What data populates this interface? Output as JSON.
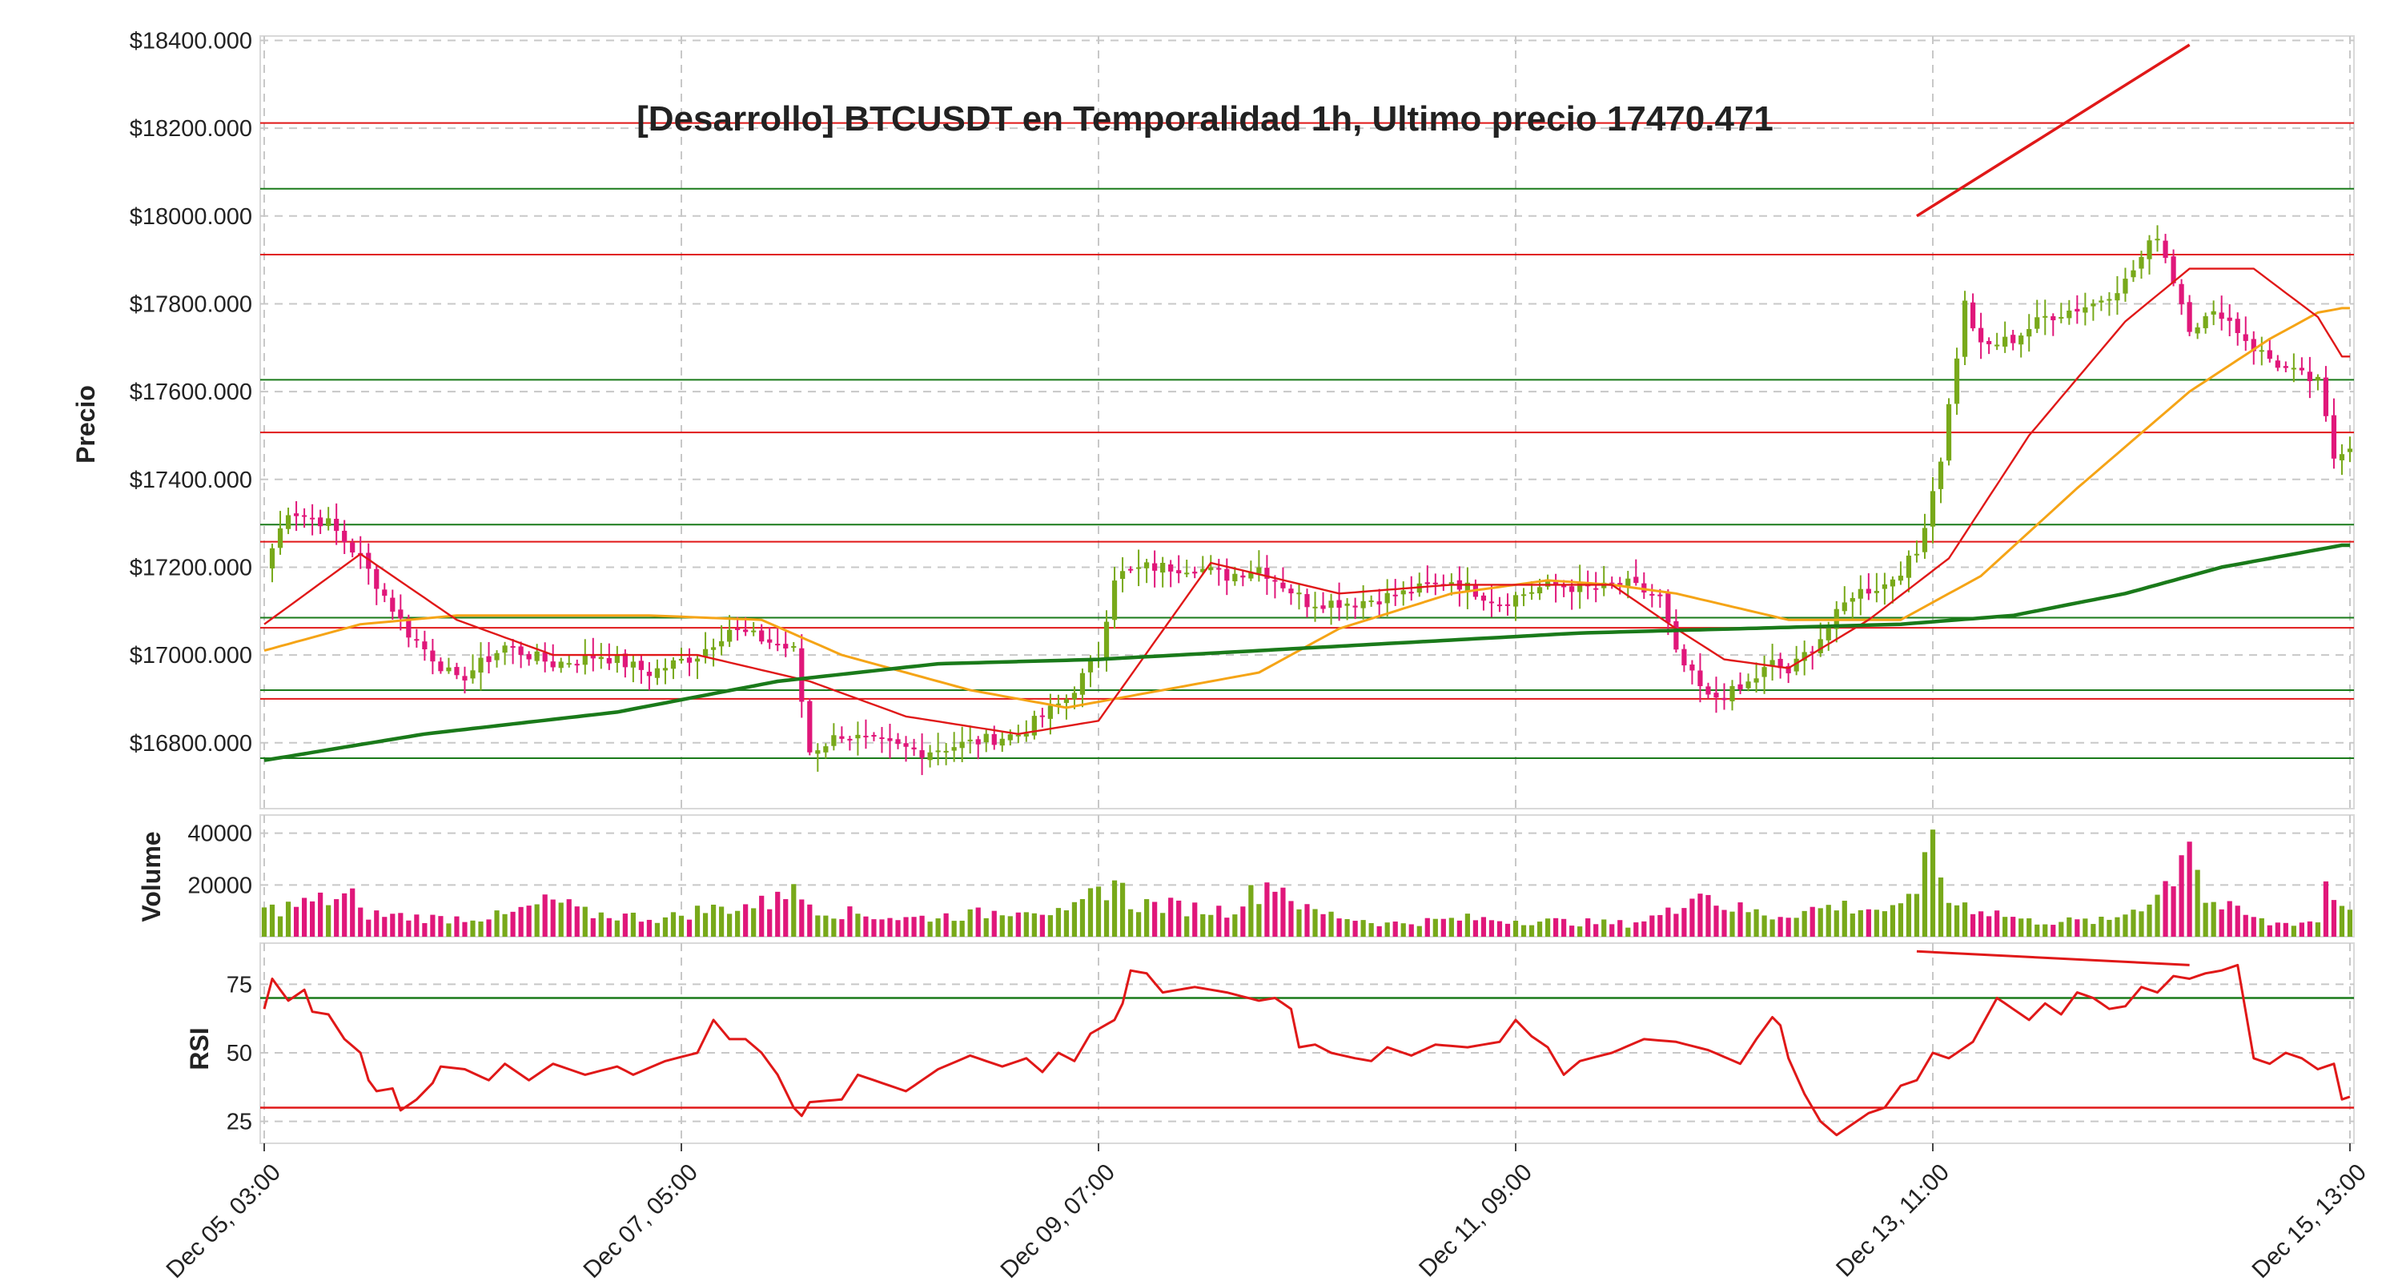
{
  "chart_data": {
    "type": "candlestick",
    "title": "[Desarrollo] BTCUSDT en Temporalidad 1h, Ultimo precio 17470.471",
    "colors": {
      "up": "#78a91a",
      "down": "#e0177a",
      "sma_fast": "#e01818",
      "sma_mid": "#f5a416",
      "sma_slow": "#1a7a1a",
      "support": "#1a7a1a",
      "resistance": "#e01818",
      "rsi": "#e01818",
      "grid": "#c8c8c8"
    },
    "x_ticks": [
      "Dec 05, 03:00",
      "Dec 07, 05:00",
      "Dec 09, 07:00",
      "Dec 11, 09:00",
      "Dec 13, 11:00",
      "Dec 15, 13:00"
    ],
    "price_panel": {
      "ylabel": "Precio",
      "ylim": [
        16650,
        18410
      ],
      "y_ticks": [
        {
          "value": 18400,
          "label": "$18400.000"
        },
        {
          "value": 18200,
          "label": "$18200.000"
        },
        {
          "value": 18000,
          "label": "$18000.000"
        },
        {
          "value": 17800,
          "label": "$17800.000"
        },
        {
          "value": 17600,
          "label": "$17600.000"
        },
        {
          "value": 17400,
          "label": "$17400.000"
        },
        {
          "value": 17200,
          "label": "$17200.000"
        },
        {
          "value": 17000,
          "label": "$17000.000"
        },
        {
          "value": 16800,
          "label": "$16800.000"
        }
      ],
      "resistance_levels": [
        18212,
        17912,
        17507,
        17258,
        17062,
        16900
      ],
      "support_levels": [
        18062,
        17627,
        17297,
        17085,
        16920,
        16765
      ],
      "divergence_line": {
        "from": [
          206,
          18000
        ],
        "to": [
          240,
          18390
        ]
      },
      "close_anchors": [
        [
          0,
          17200
        ],
        [
          3,
          17330
        ],
        [
          8,
          17300
        ],
        [
          12,
          17220
        ],
        [
          18,
          17050
        ],
        [
          24,
          16940
        ],
        [
          30,
          17020
        ],
        [
          36,
          16980
        ],
        [
          42,
          17000
        ],
        [
          48,
          16960
        ],
        [
          54,
          17000
        ],
        [
          58,
          17060
        ],
        [
          63,
          17030
        ],
        [
          66,
          17010
        ],
        [
          68,
          16780
        ],
        [
          72,
          16820
        ],
        [
          76,
          16800
        ],
        [
          82,
          16780
        ],
        [
          88,
          16800
        ],
        [
          94,
          16820
        ],
        [
          100,
          16900
        ],
        [
          104,
          17000
        ],
        [
          106,
          17180
        ],
        [
          110,
          17200
        ],
        [
          116,
          17200
        ],
        [
          120,
          17180
        ],
        [
          124,
          17200
        ],
        [
          130,
          17120
        ],
        [
          136,
          17120
        ],
        [
          142,
          17140
        ],
        [
          148,
          17170
        ],
        [
          154,
          17120
        ],
        [
          160,
          17160
        ],
        [
          166,
          17150
        ],
        [
          170,
          17160
        ],
        [
          174,
          17130
        ],
        [
          176,
          17000
        ],
        [
          180,
          16900
        ],
        [
          184,
          16920
        ],
        [
          188,
          16980
        ],
        [
          190,
          16960
        ],
        [
          194,
          17040
        ],
        [
          198,
          17140
        ],
        [
          202,
          17160
        ],
        [
          206,
          17230
        ],
        [
          209,
          17450
        ],
        [
          212,
          17800
        ],
        [
          214,
          17700
        ],
        [
          218,
          17720
        ],
        [
          222,
          17770
        ],
        [
          228,
          17800
        ],
        [
          232,
          17850
        ],
        [
          236,
          17960
        ],
        [
          240,
          17750
        ],
        [
          244,
          17780
        ],
        [
          248,
          17700
        ],
        [
          252,
          17650
        ],
        [
          256,
          17620
        ],
        [
          258,
          17450
        ],
        [
          259,
          17470
        ]
      ],
      "sma_fast": [
        [
          0,
          17070
        ],
        [
          12,
          17230
        ],
        [
          24,
          17080
        ],
        [
          36,
          17000
        ],
        [
          54,
          17000
        ],
        [
          68,
          16940
        ],
        [
          80,
          16860
        ],
        [
          94,
          16820
        ],
        [
          104,
          16850
        ],
        [
          118,
          17210
        ],
        [
          134,
          17140
        ],
        [
          148,
          17160
        ],
        [
          160,
          17160
        ],
        [
          168,
          17160
        ],
        [
          176,
          17060
        ],
        [
          182,
          16990
        ],
        [
          190,
          16970
        ],
        [
          200,
          17080
        ],
        [
          210,
          17220
        ],
        [
          220,
          17500
        ],
        [
          232,
          17760
        ],
        [
          240,
          17880
        ],
        [
          248,
          17880
        ],
        [
          256,
          17770
        ],
        [
          259,
          17680
        ]
      ],
      "sma_mid": [
        [
          0,
          17010
        ],
        [
          12,
          17070
        ],
        [
          24,
          17090
        ],
        [
          36,
          17090
        ],
        [
          48,
          17090
        ],
        [
          62,
          17080
        ],
        [
          72,
          17000
        ],
        [
          88,
          16920
        ],
        [
          100,
          16880
        ],
        [
          112,
          16920
        ],
        [
          124,
          16960
        ],
        [
          134,
          17060
        ],
        [
          148,
          17140
        ],
        [
          160,
          17170
        ],
        [
          168,
          17160
        ],
        [
          176,
          17140
        ],
        [
          190,
          17080
        ],
        [
          204,
          17080
        ],
        [
          214,
          17180
        ],
        [
          226,
          17380
        ],
        [
          240,
          17600
        ],
        [
          250,
          17720
        ],
        [
          256,
          17780
        ],
        [
          259,
          17790
        ]
      ],
      "sma_slow": [
        [
          0,
          16760
        ],
        [
          20,
          16820
        ],
        [
          44,
          16870
        ],
        [
          64,
          16940
        ],
        [
          84,
          16980
        ],
        [
          104,
          16990
        ],
        [
          124,
          17010
        ],
        [
          144,
          17030
        ],
        [
          164,
          17050
        ],
        [
          184,
          17060
        ],
        [
          204,
          17070
        ],
        [
          218,
          17090
        ],
        [
          232,
          17140
        ],
        [
          244,
          17200
        ],
        [
          259,
          17250
        ]
      ]
    },
    "volume_panel": {
      "ylabel": "Volume",
      "ylim": [
        0,
        47000
      ],
      "y_ticks": [
        {
          "value": 40000,
          "label": "40000"
        },
        {
          "value": 20000,
          "label": "20000"
        }
      ],
      "anchors": [
        [
          0,
          10000
        ],
        [
          11,
          16000
        ],
        [
          12,
          9000
        ],
        [
          22,
          7000
        ],
        [
          30,
          8000
        ],
        [
          36,
          14000
        ],
        [
          40,
          9000
        ],
        [
          50,
          7000
        ],
        [
          54,
          10000
        ],
        [
          63,
          13000
        ],
        [
          64,
          20000
        ],
        [
          70,
          10000
        ],
        [
          80,
          7000
        ],
        [
          90,
          9000
        ],
        [
          95,
          12000
        ],
        [
          100,
          8000
        ],
        [
          106,
          22000
        ],
        [
          108,
          13000
        ],
        [
          120,
          10000
        ],
        [
          126,
          22000
        ],
        [
          130,
          10000
        ],
        [
          140,
          5000
        ],
        [
          150,
          7000
        ],
        [
          160,
          6000
        ],
        [
          170,
          5000
        ],
        [
          176,
          10000
        ],
        [
          178,
          20000
        ],
        [
          182,
          12000
        ],
        [
          188,
          8000
        ],
        [
          196,
          12000
        ],
        [
          204,
          10000
        ],
        [
          206,
          18000
        ],
        [
          207,
          41000
        ],
        [
          210,
          14000
        ],
        [
          220,
          6000
        ],
        [
          230,
          6000
        ],
        [
          236,
          16000
        ],
        [
          238,
          25000
        ],
        [
          240,
          43000
        ],
        [
          242,
          14000
        ],
        [
          250,
          5000
        ],
        [
          256,
          6000
        ],
        [
          257,
          21000
        ],
        [
          259,
          12000
        ]
      ]
    },
    "rsi_panel": {
      "ylabel": "RSI",
      "ylim": [
        17,
        90
      ],
      "y_ticks": [
        {
          "value": 75,
          "label": "75"
        },
        {
          "value": 50,
          "label": "50"
        },
        {
          "value": 25,
          "label": "25"
        }
      ],
      "upper_level": 70,
      "lower_level": 30,
      "divergence_line": {
        "from": [
          206,
          87
        ],
        "to": [
          240,
          82
        ]
      },
      "values_anchors": [
        [
          0,
          66
        ],
        [
          1,
          77
        ],
        [
          3,
          69
        ],
        [
          5,
          73
        ],
        [
          6,
          65
        ],
        [
          8,
          64
        ],
        [
          10,
          55
        ],
        [
          12,
          50
        ],
        [
          13,
          40
        ],
        [
          14,
          36
        ],
        [
          16,
          37
        ],
        [
          17,
          29
        ],
        [
          19,
          33
        ],
        [
          21,
          39
        ],
        [
          22,
          45
        ],
        [
          25,
          44
        ],
        [
          28,
          40
        ],
        [
          30,
          46
        ],
        [
          33,
          40
        ],
        [
          36,
          46
        ],
        [
          40,
          42
        ],
        [
          44,
          45
        ],
        [
          46,
          42
        ],
        [
          50,
          47
        ],
        [
          54,
          50
        ],
        [
          56,
          62
        ],
        [
          58,
          55
        ],
        [
          60,
          55
        ],
        [
          62,
          50
        ],
        [
          64,
          42
        ],
        [
          66,
          30
        ],
        [
          67,
          27
        ],
        [
          68,
          32
        ],
        [
          72,
          33
        ],
        [
          74,
          42
        ],
        [
          78,
          38
        ],
        [
          80,
          36
        ],
        [
          84,
          44
        ],
        [
          88,
          49
        ],
        [
          92,
          45
        ],
        [
          95,
          48
        ],
        [
          97,
          43
        ],
        [
          99,
          50
        ],
        [
          101,
          47
        ],
        [
          103,
          57
        ],
        [
          106,
          62
        ],
        [
          107,
          68
        ],
        [
          108,
          80
        ],
        [
          110,
          79
        ],
        [
          112,
          72
        ],
        [
          116,
          74
        ],
        [
          120,
          72
        ],
        [
          124,
          69
        ],
        [
          126,
          70
        ],
        [
          128,
          66
        ],
        [
          129,
          52
        ],
        [
          131,
          53
        ],
        [
          133,
          50
        ],
        [
          136,
          48
        ],
        [
          138,
          47
        ],
        [
          140,
          52
        ],
        [
          143,
          49
        ],
        [
          146,
          53
        ],
        [
          150,
          52
        ],
        [
          154,
          54
        ],
        [
          156,
          62
        ],
        [
          158,
          56
        ],
        [
          160,
          52
        ],
        [
          162,
          42
        ],
        [
          164,
          47
        ],
        [
          168,
          50
        ],
        [
          172,
          55
        ],
        [
          176,
          54
        ],
        [
          180,
          51
        ],
        [
          184,
          46
        ],
        [
          186,
          55
        ],
        [
          188,
          63
        ],
        [
          189,
          60
        ],
        [
          190,
          48
        ],
        [
          192,
          35
        ],
        [
          193,
          30
        ],
        [
          194,
          25
        ],
        [
          196,
          20
        ],
        [
          198,
          24
        ],
        [
          200,
          28
        ],
        [
          202,
          30
        ],
        [
          204,
          38
        ],
        [
          206,
          40
        ],
        [
          208,
          50
        ],
        [
          210,
          48
        ],
        [
          213,
          54
        ],
        [
          216,
          70
        ],
        [
          218,
          66
        ],
        [
          220,
          62
        ],
        [
          222,
          68
        ],
        [
          224,
          64
        ],
        [
          226,
          72
        ],
        [
          228,
          70
        ],
        [
          230,
          66
        ],
        [
          232,
          67
        ],
        [
          234,
          74
        ],
        [
          236,
          72
        ],
        [
          238,
          78
        ],
        [
          240,
          77
        ],
        [
          242,
          79
        ],
        [
          244,
          80
        ],
        [
          246,
          82
        ],
        [
          248,
          48
        ],
        [
          250,
          46
        ],
        [
          252,
          50
        ],
        [
          254,
          48
        ],
        [
          256,
          44
        ],
        [
          258,
          46
        ],
        [
          259,
          33
        ],
        [
          260,
          34
        ]
      ]
    }
  }
}
